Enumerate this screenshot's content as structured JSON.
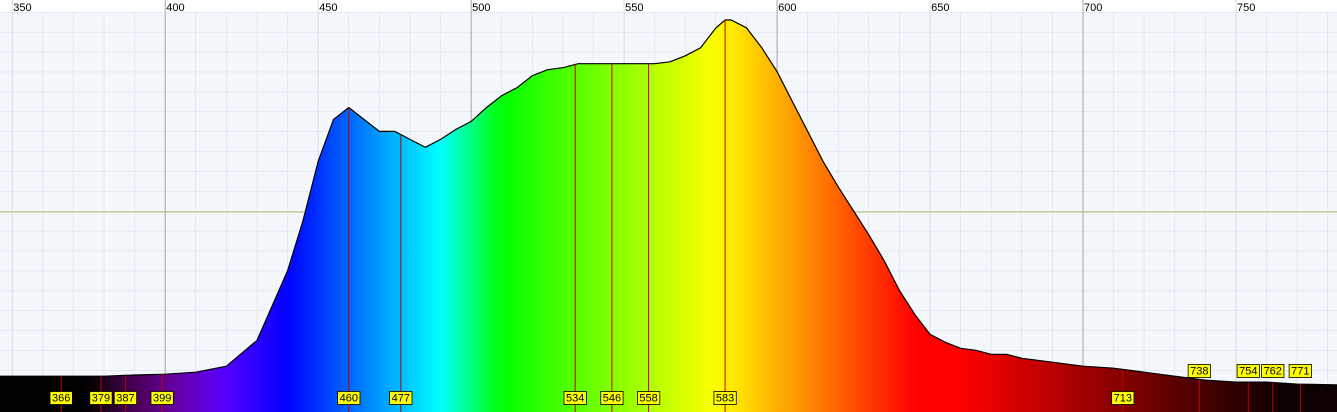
{
  "chart_data": {
    "type": "spectrum",
    "x": [
      346,
      350,
      360,
      370,
      380,
      390,
      400,
      410,
      420,
      430,
      440,
      445,
      450,
      455,
      460,
      465,
      470,
      475,
      480,
      485,
      490,
      495,
      500,
      505,
      510,
      515,
      520,
      525,
      530,
      535,
      540,
      545,
      550,
      555,
      560,
      565,
      570,
      575,
      580,
      583,
      585,
      590,
      595,
      600,
      605,
      610,
      615,
      620,
      625,
      630,
      635,
      640,
      645,
      650,
      655,
      660,
      665,
      670,
      675,
      680,
      690,
      700,
      710,
      720,
      730,
      740,
      750,
      760,
      770,
      783
    ],
    "values": [
      8.5,
      8.5,
      8.5,
      8.5,
      8.5,
      8.8,
      9,
      9.5,
      11,
      17.5,
      35,
      47.5,
      62.5,
      73,
      76,
      73,
      70,
      70,
      68,
      66,
      68,
      70.5,
      72.5,
      76,
      79,
      81,
      84,
      85.5,
      86,
      87,
      87,
      87,
      87,
      87,
      87,
      87.5,
      89,
      91,
      96,
      98,
      98,
      96,
      91,
      85,
      77.5,
      70,
      62.5,
      56,
      50,
      44,
      37.5,
      30,
      24,
      19,
      17,
      15.5,
      15,
      14,
      14,
      13,
      12,
      11,
      10.5,
      9.5,
      8.5,
      7.5,
      7,
      7,
      6.5,
      6.3
    ],
    "xlim": [
      346,
      783
    ],
    "ylim": [
      0,
      100
    ],
    "xticks": [
      350,
      400,
      450,
      500,
      550,
      600,
      650,
      700,
      750
    ],
    "peaks": [
      366,
      379,
      387,
      399,
      460,
      477,
      534,
      546,
      558,
      583,
      713,
      738,
      754,
      762,
      771
    ],
    "line_color": "#000000",
    "peak_color": "#c00000",
    "label_color": "#ffff00"
  }
}
